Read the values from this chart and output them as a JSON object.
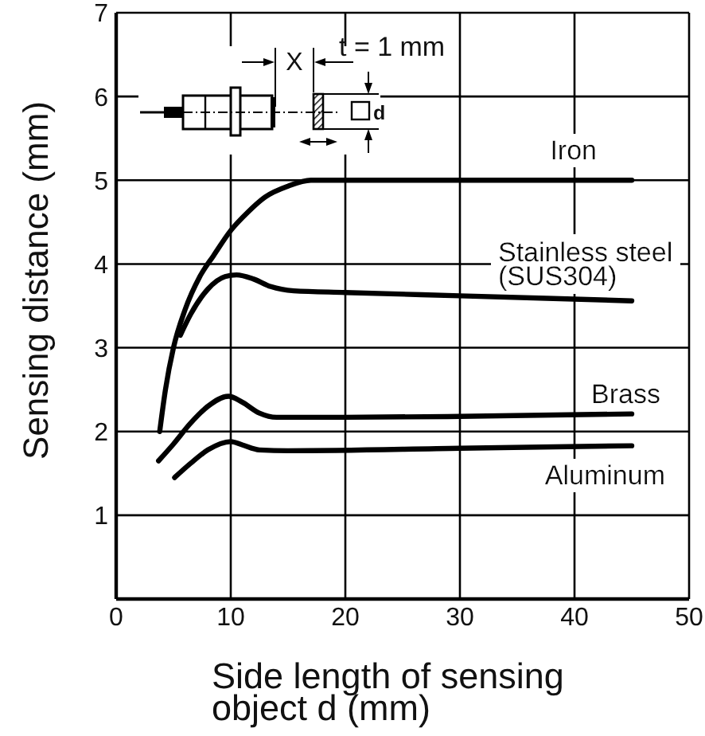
{
  "chart_data": {
    "type": "line",
    "xlabel": "Side length of sensing\nobject d (mm)",
    "ylabel": "Sensing distance (mm)",
    "xlim": [
      0,
      50
    ],
    "xticks": [
      0,
      10,
      20,
      30,
      40,
      50
    ],
    "ylim": [
      0,
      7
    ],
    "yticks": [
      1,
      2,
      3,
      4,
      5,
      6,
      7
    ],
    "grid": true,
    "line_style": "solid",
    "annotations": [
      "X",
      "t = 1 mm",
      "d"
    ],
    "series": [
      {
        "name": "Iron",
        "color": "#000000",
        "x": [
          3.8,
          4.3,
          5,
          6,
          7.3,
          8.5,
          10,
          11.5,
          13,
          15,
          17,
          45
        ],
        "values": [
          2.0,
          2.5,
          3.0,
          3.45,
          3.85,
          4.1,
          4.4,
          4.62,
          4.8,
          4.93,
          5.0,
          5.0
        ]
      },
      {
        "name": "Stainless steel\n(SUS304)",
        "color": "#000000",
        "x": [
          5.6,
          6.5,
          8,
          9.5,
          10.5,
          12,
          13.5,
          15.5,
          20,
          30,
          45
        ],
        "values": [
          3.15,
          3.4,
          3.7,
          3.85,
          3.87,
          3.82,
          3.73,
          3.68,
          3.66,
          3.62,
          3.56
        ]
      },
      {
        "name": "Brass",
        "color": "#000000",
        "x": [
          3.7,
          5,
          6.5,
          8,
          9.8,
          11,
          12.5,
          14,
          20,
          30,
          45
        ],
        "values": [
          1.65,
          1.85,
          2.1,
          2.3,
          2.42,
          2.35,
          2.22,
          2.17,
          2.17,
          2.18,
          2.21
        ]
      },
      {
        "name": "Aluminum",
        "color": "#000000",
        "x": [
          5.1,
          6.5,
          8,
          10,
          11,
          12.5,
          15,
          30,
          45
        ],
        "values": [
          1.45,
          1.62,
          1.78,
          1.88,
          1.84,
          1.78,
          1.77,
          1.8,
          1.83
        ]
      }
    ]
  }
}
